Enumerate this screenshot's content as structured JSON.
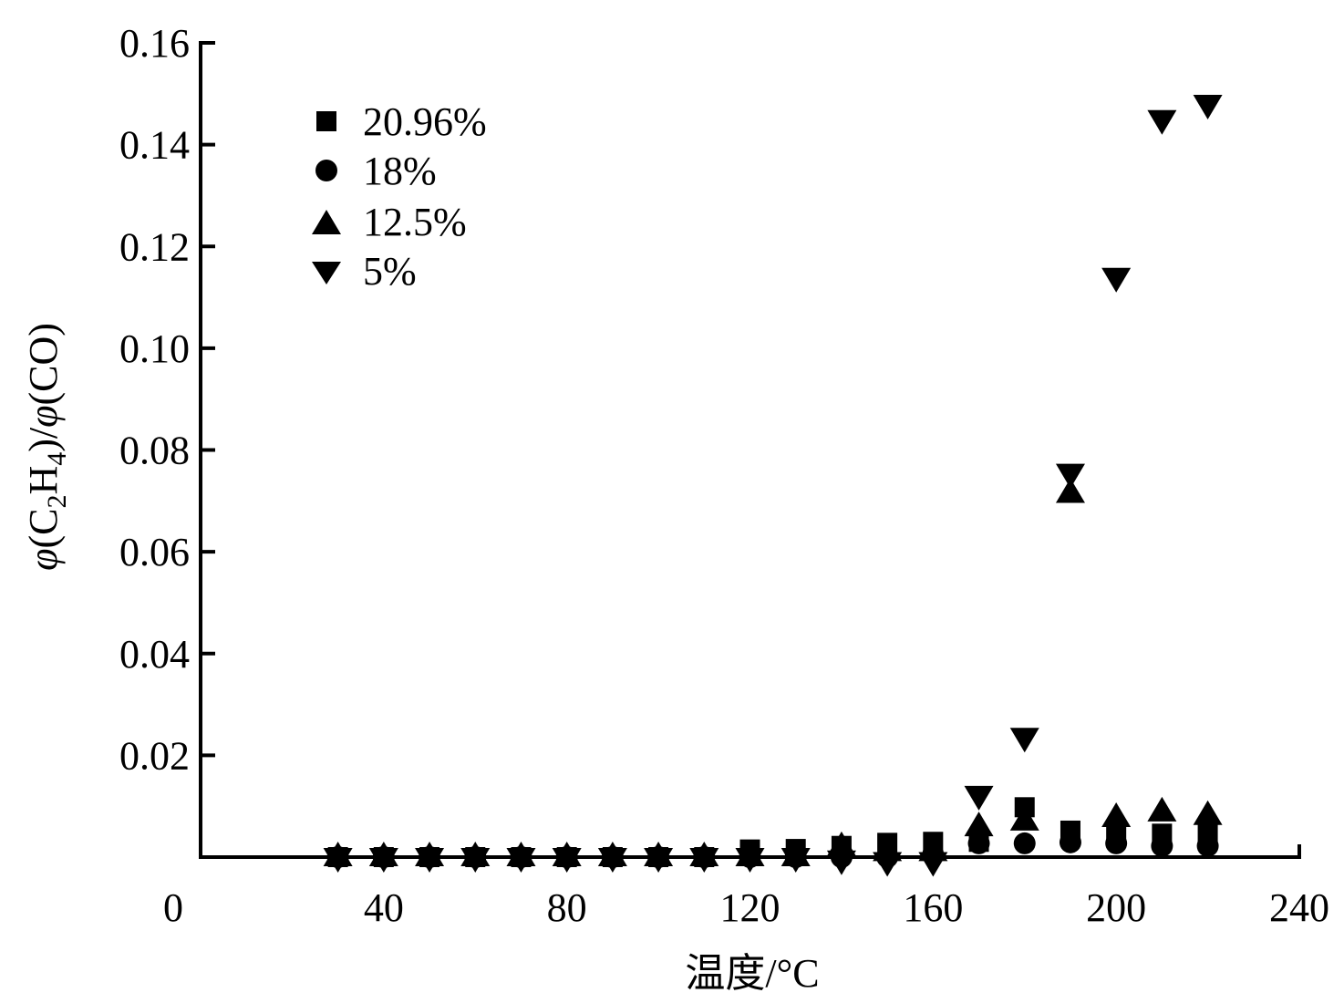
{
  "chart_data": {
    "type": "scatter",
    "title": "",
    "xlabel": "温度/°C",
    "ylabel": "φ(C2H4)/φ(CO)",
    "ylabel_parts": {
      "phi1": "φ",
      "open1": "(C",
      "sub1": "2",
      "mid": "H",
      "sub2": "4",
      "close1": ")/",
      "phi2": "φ",
      "tail": "(CO)"
    },
    "xlim": [
      0,
      240
    ],
    "ylim": [
      0,
      0.16
    ],
    "xticks": [
      0,
      40,
      80,
      120,
      160,
      200,
      240
    ],
    "xtick_labels": [
      "0",
      "40",
      "80",
      "120",
      "160",
      "200",
      "240"
    ],
    "yticks": [
      0.02,
      0.04,
      0.06,
      0.08,
      0.1,
      0.12,
      0.14,
      0.16
    ],
    "ytick_labels": [
      "0.02",
      "0.04",
      "0.06",
      "0.08",
      "0.10",
      "0.12",
      "0.14",
      "0.16"
    ],
    "grid": false,
    "legend_position": "upper-left",
    "x": [
      30,
      40,
      50,
      60,
      70,
      80,
      90,
      100,
      110,
      120,
      130,
      140,
      150,
      160,
      170,
      180,
      190,
      200,
      210,
      220
    ],
    "series": [
      {
        "name": "20.96%",
        "marker": "square",
        "values": [
          0,
          0,
          0,
          0,
          0,
          0,
          0,
          0,
          0,
          0.0015,
          0.0016,
          0.0022,
          0.0028,
          0.003,
          0.003,
          0.0098,
          0.0052,
          0.005,
          0.0046,
          0.005
        ]
      },
      {
        "name": "18%",
        "marker": "circle",
        "values": [
          0,
          0,
          0,
          0,
          0,
          0,
          0,
          0,
          0,
          0,
          0,
          0,
          0,
          0.0005,
          0.0027,
          0.0027,
          0.0029,
          0.0027,
          0.0022,
          0.0022
        ]
      },
      {
        "name": "12.5%",
        "marker": "triangle-up",
        "values": [
          0,
          0,
          0,
          0,
          0,
          0,
          0,
          0,
          0,
          0,
          0,
          0.002,
          0.001,
          0.001,
          0.0059,
          0.007,
          0.0714,
          0.0077,
          0.0088,
          0.0081
        ]
      },
      {
        "name": "5%",
        "marker": "triangle-down",
        "values": [
          0,
          0,
          0,
          0,
          0,
          0,
          0,
          0,
          0,
          0,
          0,
          -0.0005,
          -0.0008,
          -0.0008,
          0.0122,
          0.0236,
          0.0755,
          0.114,
          0.145,
          0.148
        ]
      }
    ]
  }
}
